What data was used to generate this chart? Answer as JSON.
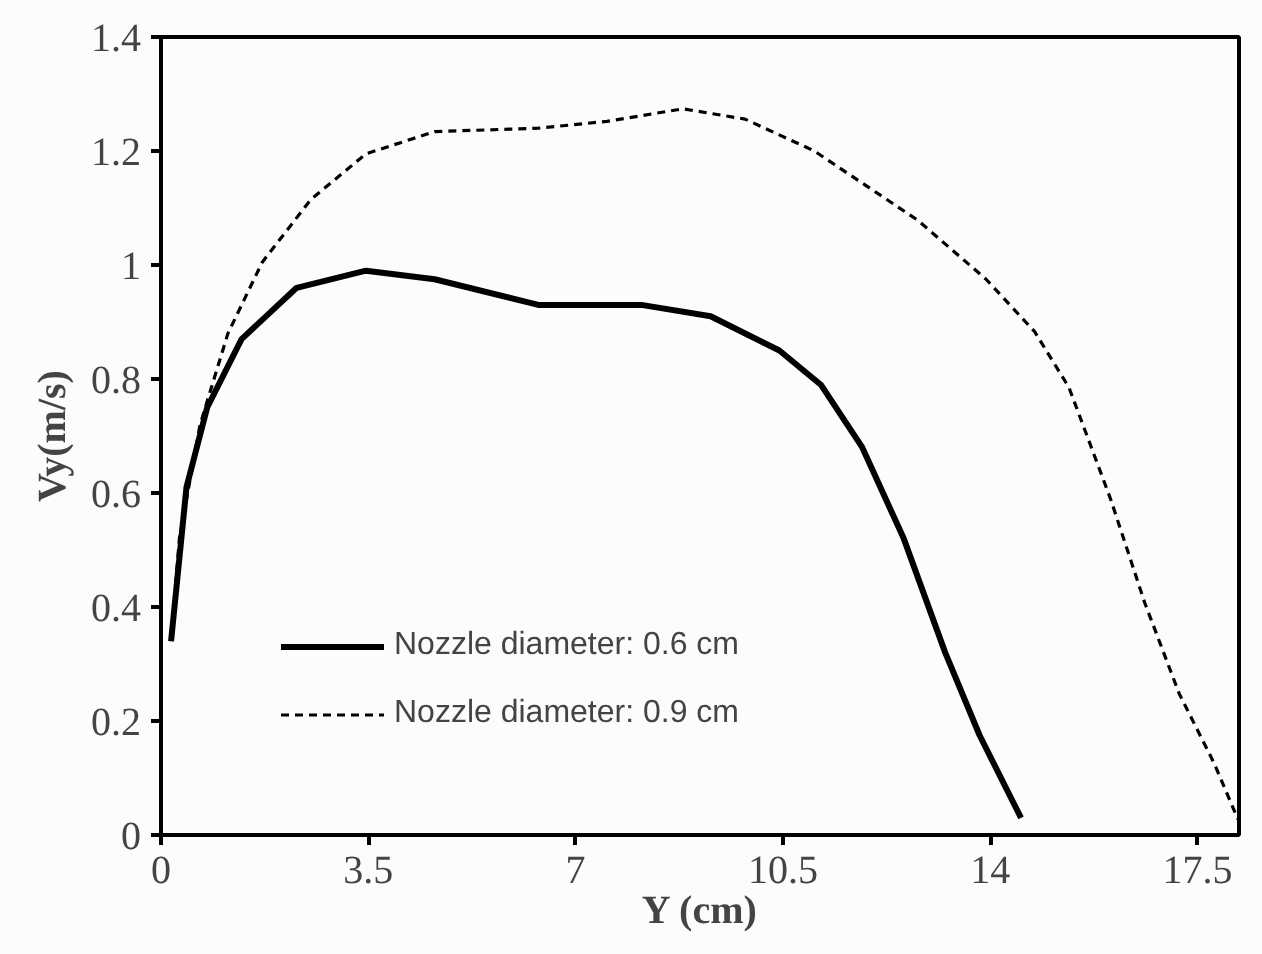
{
  "chart_data": {
    "type": "line",
    "xlabel": "Y (cm)",
    "ylabel": "Vy(m/s)",
    "xlim": [
      0,
      18.2
    ],
    "xticks": [
      0,
      3.5,
      7,
      10.5,
      14,
      17.5
    ],
    "ylim": [
      0,
      1.4
    ],
    "yticks": [
      0,
      0.2,
      0.4,
      0.6,
      0.8,
      1,
      1.2,
      1.4
    ],
    "grid": false,
    "legend": "bottom left",
    "marker": "none",
    "series": [
      {
        "name": "Nozzle diameter: 0.6 cm",
        "color": "#000000",
        "line_style": "solid",
        "x": [
          0.17,
          0.43,
          0.78,
          1.36,
          2.29,
          3.46,
          4.62,
          6.37,
          8.11,
          9.28,
          10.44,
          11.14,
          11.84,
          12.54,
          13.24,
          13.82,
          14.52
        ],
        "values": [
          0.34,
          0.61,
          0.75,
          0.87,
          0.96,
          0.99,
          0.975,
          0.93,
          0.93,
          0.91,
          0.85,
          0.79,
          0.68,
          0.52,
          0.32,
          0.175,
          0.03
        ]
      },
      {
        "name": "Nozzle diameter: 0.9 cm",
        "color": "#000000",
        "line_style": "dashed",
        "x": [
          0.17,
          0.31,
          0.66,
          1.13,
          1.71,
          2.53,
          3.46,
          4.62,
          6.37,
          7.53,
          8.81,
          9.86,
          11.03,
          12.77,
          13.93,
          14.75,
          15.33,
          16.03,
          16.61,
          17.19,
          17.78,
          18.18
        ],
        "values": [
          0.34,
          0.52,
          0.72,
          0.88,
          1.005,
          1.115,
          1.195,
          1.234,
          1.24,
          1.252,
          1.274,
          1.256,
          1.2,
          1.079,
          0.975,
          0.883,
          0.785,
          0.59,
          0.407,
          0.248,
          0.126,
          0.028
        ]
      }
    ]
  }
}
